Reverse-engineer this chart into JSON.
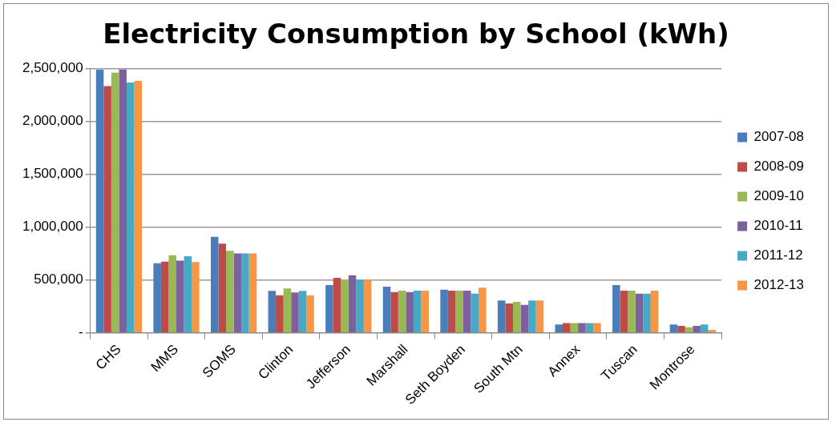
{
  "chart_data": {
    "type": "bar",
    "title": "Electricity Consumption by School (kWh)",
    "categories": [
      "CHS",
      "MMS",
      "SOMS",
      "Clinton",
      "Jefferson",
      "Marshall",
      "Seth Boyden",
      "South Mtn",
      "Annex",
      "Tuscan",
      "Montrose"
    ],
    "series": [
      {
        "name": "2007-08",
        "color": "#4a7ebb",
        "values": [
          2490000,
          660000,
          910000,
          397000,
          452000,
          438000,
          410000,
          307000,
          79000,
          452000,
          79000
        ]
      },
      {
        "name": "2008-09",
        "color": "#be4b48",
        "values": [
          2336000,
          674000,
          845000,
          356000,
          521000,
          386000,
          400000,
          279000,
          93000,
          400000,
          66000
        ]
      },
      {
        "name": "2009-10",
        "color": "#98b954",
        "values": [
          2462000,
          735000,
          776000,
          421000,
          503000,
          400000,
          400000,
          293000,
          93000,
          400000,
          52000
        ]
      },
      {
        "name": "2010-11",
        "color": "#7d60a0",
        "values": [
          2493000,
          684000,
          752000,
          383000,
          545000,
          386000,
          400000,
          265000,
          93000,
          372000,
          66000
        ]
      },
      {
        "name": "2011-12",
        "color": "#46aac5",
        "values": [
          2370000,
          725000,
          752000,
          397000,
          503000,
          400000,
          372000,
          307000,
          93000,
          372000,
          79000
        ]
      },
      {
        "name": "2012-13",
        "color": "#f79646",
        "values": [
          2384000,
          670000,
          752000,
          356000,
          503000,
          400000,
          428000,
          307000,
          93000,
          400000,
          28000
        ]
      }
    ],
    "ylim": [
      0,
      2500000
    ],
    "yticks": [
      {
        "value": 0,
        "label": "-"
      },
      {
        "value": 500000,
        "label": "500,000"
      },
      {
        "value": 1000000,
        "label": "1,000,000"
      },
      {
        "value": 1500000,
        "label": "1,500,000"
      },
      {
        "value": 2000000,
        "label": "2,000,000"
      },
      {
        "value": 2500000,
        "label": "2,500,000"
      }
    ],
    "grid": "y",
    "legend": "right"
  }
}
